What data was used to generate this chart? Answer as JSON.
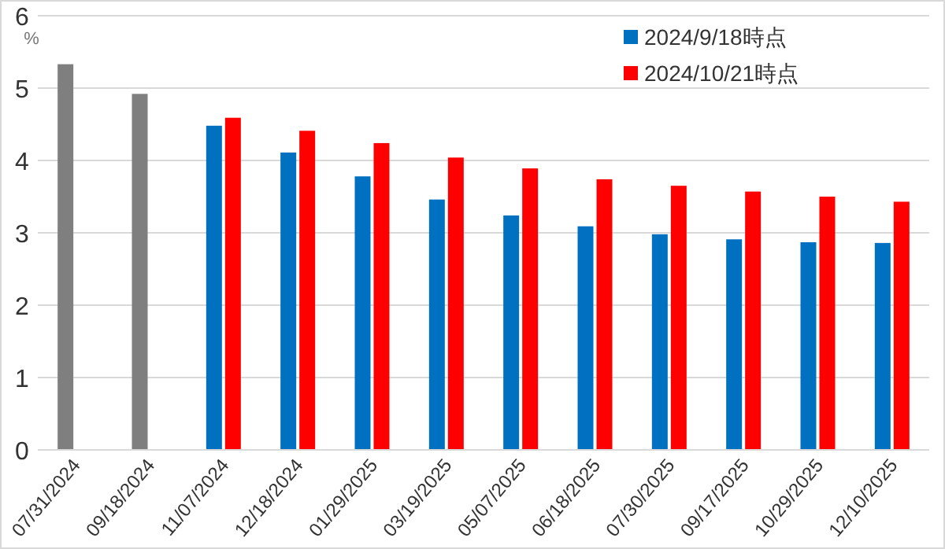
{
  "chart_data": {
    "type": "bar",
    "ylabel": "%",
    "categories": [
      "07/31/2024",
      "09/18/2024",
      "11/07/2024",
      "12/18/2024",
      "01/29/2025",
      "03/19/2025",
      "05/07/2025",
      "06/18/2025",
      "07/30/2025",
      "09/17/2025",
      "10/29/2025",
      "12/10/2025"
    ],
    "series": [
      {
        "name": "2024/9/18時点",
        "color": "#0070c0",
        "colors": [
          "#7f7f7f",
          "#7f7f7f",
          "#0070c0",
          "#0070c0",
          "#0070c0",
          "#0070c0",
          "#0070c0",
          "#0070c0",
          "#0070c0",
          "#0070c0",
          "#0070c0",
          "#0070c0"
        ],
        "values": [
          5.33,
          4.92,
          4.48,
          4.11,
          3.78,
          3.46,
          3.24,
          3.09,
          2.98,
          2.91,
          2.87,
          2.86
        ]
      },
      {
        "name": "2024/10/21時点",
        "color": "#ff0000",
        "values": [
          null,
          null,
          4.59,
          4.41,
          4.24,
          4.04,
          3.89,
          3.74,
          3.65,
          3.57,
          3.5,
          3.43
        ]
      }
    ],
    "ylim": [
      0,
      6
    ],
    "yticks": [
      0,
      1,
      2,
      3,
      4,
      5,
      6
    ],
    "grid": "y",
    "legend": "top right"
  }
}
